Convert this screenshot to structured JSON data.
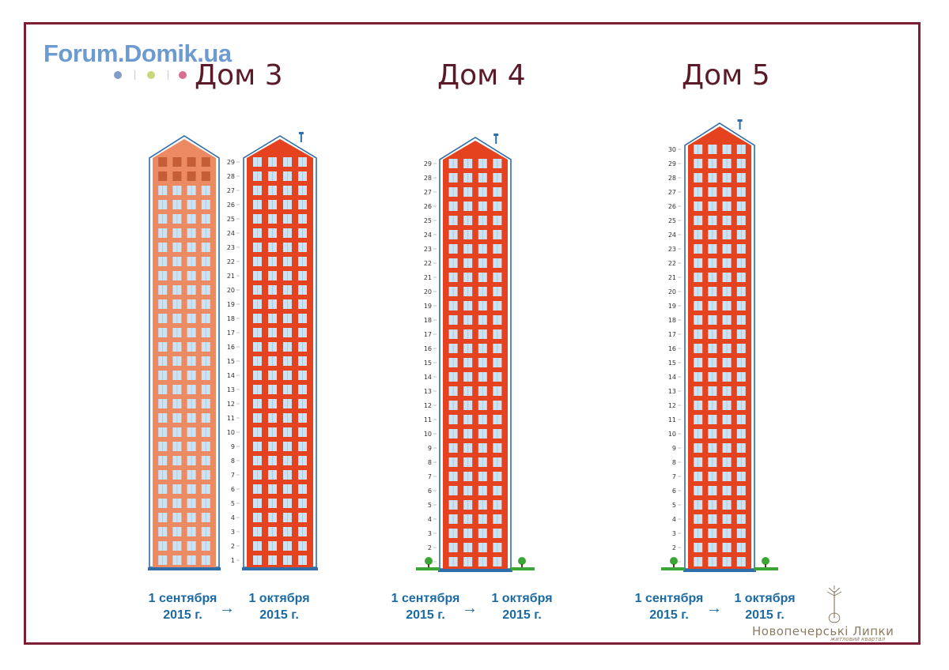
{
  "watermark": {
    "text": "Forum.Domik.ua",
    "dots": [
      "#7f9fc9",
      "#c9d97a",
      "#d77090"
    ]
  },
  "houses": [
    {
      "title": "Дом 3",
      "floor_labels": [
        "1",
        "2",
        "3",
        "4",
        "5",
        "6",
        "7",
        "8",
        "9",
        "10",
        "11",
        "12",
        "13",
        "14",
        "15",
        "16",
        "17",
        "18",
        "19",
        "20",
        "21",
        "22",
        "23",
        "24",
        "25",
        "26",
        "27",
        "28",
        "29"
      ],
      "date_from": [
        "1 сентября",
        "2015 г."
      ],
      "date_to": [
        "1 октября",
        "2015 г."
      ],
      "arrow": "→",
      "state_from": {
        "built_floors": 27,
        "total_floors": 29
      },
      "state_to": {
        "built_floors": 29,
        "total_floors": 29
      }
    },
    {
      "title": "Дом 4",
      "floor_labels": [
        "1",
        "2",
        "3",
        "4",
        "5",
        "6",
        "7",
        "8",
        "9",
        "10",
        "11",
        "12",
        "13",
        "14",
        "15",
        "16",
        "17",
        "18",
        "19",
        "20",
        "21",
        "22",
        "23",
        "24",
        "25",
        "26",
        "27",
        "28",
        "29"
      ],
      "date_from": [
        "1 сентября",
        "2015 г."
      ],
      "date_to": [
        "1 октября",
        "2015 г."
      ],
      "arrow": "→",
      "state": {
        "built_floors": 29,
        "total_floors": 29
      }
    },
    {
      "title": "Дом 5",
      "floor_labels": [
        "1",
        "2",
        "3",
        "4",
        "5",
        "6",
        "7",
        "8",
        "9",
        "10",
        "11",
        "12",
        "13",
        "14",
        "15",
        "16",
        "17",
        "18",
        "19",
        "20",
        "21",
        "22",
        "23",
        "24",
        "25",
        "26",
        "27",
        "28",
        "29",
        "30"
      ],
      "date_from": [
        "1 сентября",
        "2015 г."
      ],
      "date_to": [
        "1 октября",
        "2015 г."
      ],
      "arrow": "→",
      "state": {
        "built_floors": 30,
        "total_floors": 30
      }
    }
  ],
  "logo": {
    "name": "Новопечерські Липки",
    "subtitle": "житловий квартал"
  },
  "colors": {
    "frame": "#7c1f35",
    "building_done": "#e5431f",
    "building_prev": "#ec8a63",
    "window": "#cde3f3",
    "window_unbuilt": "#c35e37",
    "outline": "#2f6ea8",
    "grass": "#3ba635",
    "title": "#5a1a27",
    "date": "#1c6aa3"
  },
  "icons": {
    "tree": "tree-icon",
    "chimney": "antenna-icon",
    "logo": "tree-logo-icon"
  }
}
